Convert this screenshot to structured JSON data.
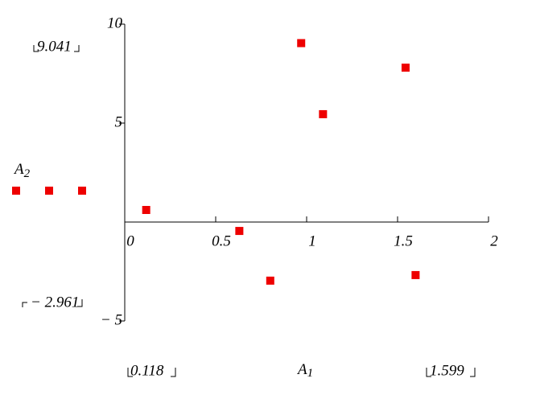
{
  "chart_data": {
    "type": "scatter",
    "x_label": {
      "base": "A",
      "sub": "1"
    },
    "y_label": {
      "base": "A",
      "sub": "2"
    },
    "ymax_field": "9.041",
    "ymin_field": "− 2.961",
    "xmin_field": "0.118",
    "xmax_field": "1.599",
    "xlim": [
      0,
      2
    ],
    "xticks": [
      0,
      0.5,
      1,
      1.5,
      2
    ],
    "ylim": [
      -5,
      10
    ],
    "yticks": [
      10,
      5,
      {
        "value": -5,
        "label": "− 5"
      }
    ],
    "color": "#ee0000",
    "x": [
      0.118,
      0.63,
      0.8,
      0.97,
      1.09,
      1.544,
      1.599
    ],
    "values": [
      0.61,
      -0.45,
      -2.961,
      9.041,
      5.45,
      7.8,
      -2.68
    ]
  }
}
